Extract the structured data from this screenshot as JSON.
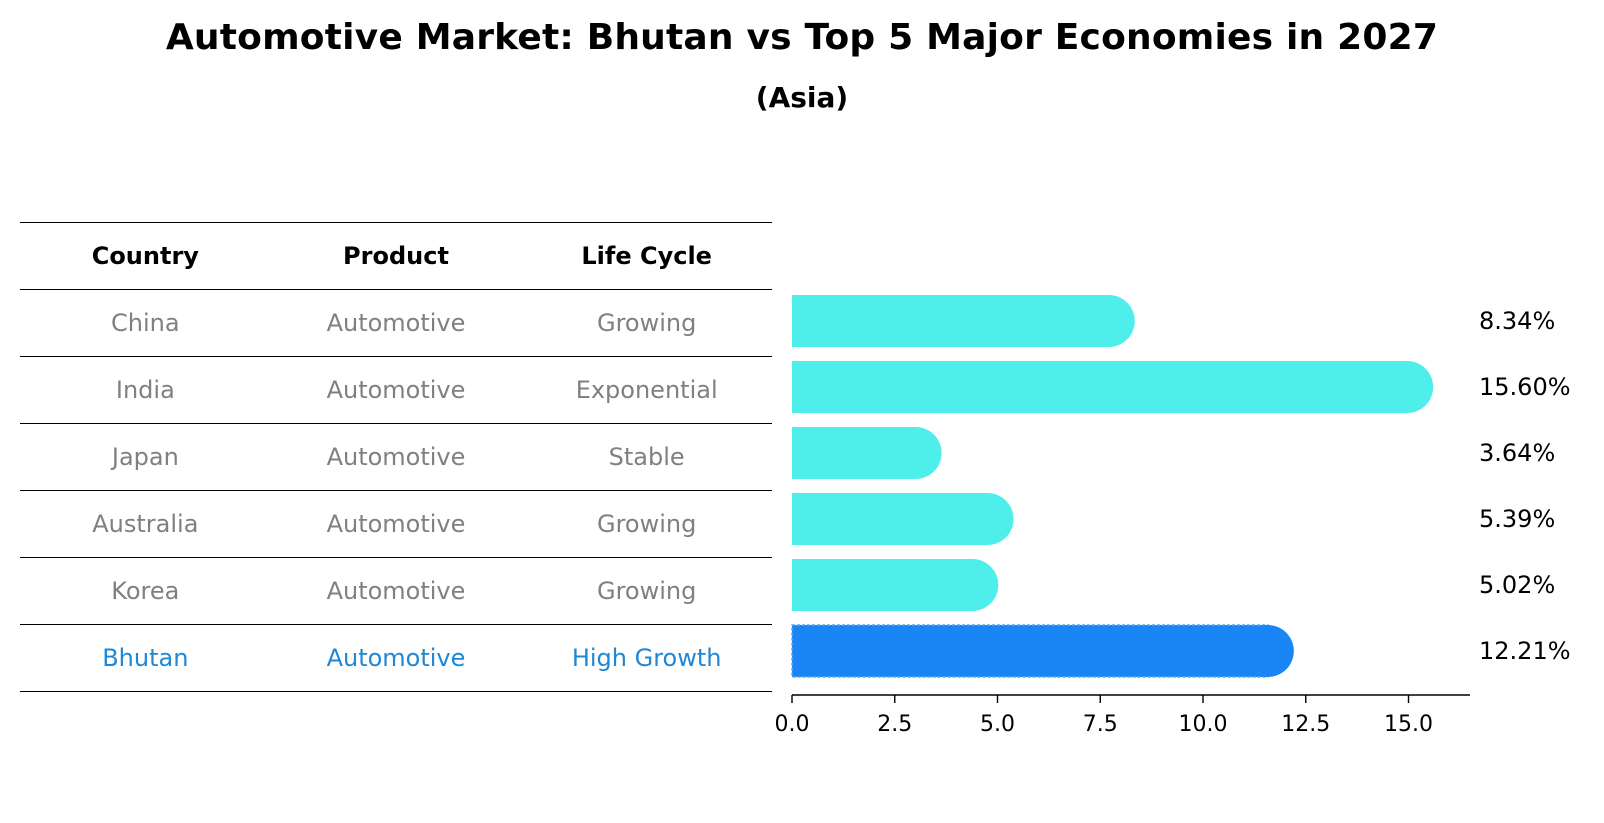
{
  "title": "Automotive Market: Bhutan vs Top 5 Major Economies in 2027",
  "subtitle": "(Asia)",
  "table": {
    "headers": [
      "Country",
      "Product",
      "Life Cycle"
    ],
    "rows": [
      [
        "China",
        "Automotive",
        "Growing"
      ],
      [
        "India",
        "Automotive",
        "Exponential"
      ],
      [
        "Japan",
        "Automotive",
        "Stable"
      ],
      [
        "Australia",
        "Automotive",
        "Growing"
      ],
      [
        "Korea",
        "Automotive",
        "Growing"
      ],
      [
        "Bhutan",
        "Automotive",
        "High Growth"
      ]
    ],
    "highlight_row": "Bhutan"
  },
  "colors": {
    "bar": "#4eeeea",
    "highlight_bar": "#1a85f5",
    "highlight_text": "#1e88d6",
    "muted_text": "#808080"
  },
  "chart_data": {
    "type": "bar",
    "orientation": "horizontal",
    "title": "Automotive Market: Bhutan vs Top 5 Major Economies in 2027",
    "subtitle": "(Asia)",
    "categories": [
      "China",
      "India",
      "Japan",
      "Australia",
      "Korea",
      "Bhutan"
    ],
    "values": [
      8.34,
      15.6,
      3.64,
      5.39,
      5.02,
      12.21
    ],
    "value_labels": [
      "8.34%",
      "15.60%",
      "3.64%",
      "5.39%",
      "5.02%",
      "12.21%"
    ],
    "highlight": "Bhutan",
    "xlim": [
      0,
      16.38
    ],
    "xticks": [
      0.0,
      2.5,
      5.0,
      7.5,
      10.0,
      12.5,
      15.0
    ],
    "xtick_labels": [
      "0.0",
      "2.5",
      "5.0",
      "7.5",
      "10.0",
      "12.5",
      "15.0"
    ],
    "xlabel": "",
    "ylabel": "",
    "grid": false,
    "legend": "none"
  }
}
